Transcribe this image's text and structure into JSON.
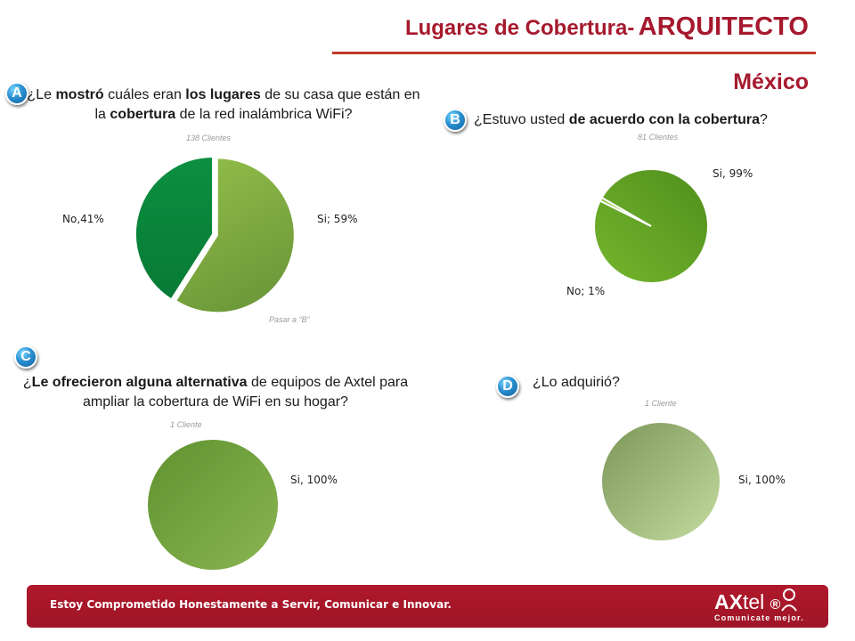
{
  "header": {
    "title_lead": "Lugares de Cobertura-",
    "title_accent": "ARQUITECTO",
    "region": "México"
  },
  "colors": {
    "brand_red": "#a6192e",
    "badge_blue": "#1f7fc4",
    "pie_dark_green": "#0b8a3e",
    "pie_light_green": "#8ab848",
    "pie_c_green": "#6ea13a",
    "pie_d_green": "#a6c48a"
  },
  "sections": {
    "a": {
      "badge": "A",
      "question_parts": [
        "¿Le ",
        "mostró",
        " cuáles eran ",
        "los lugares",
        " de su casa que están en la ",
        "cobertura",
        " de la red inalámbrica WiFi?"
      ],
      "base": "138 Clientes",
      "note": "Pasar a “B”",
      "labels": {
        "si": "Si; 59%",
        "no": "No,41%"
      }
    },
    "b": {
      "badge": "B",
      "question_parts": [
        "¿Estuvo usted ",
        "de acuerdo con la cobertura",
        "?"
      ],
      "base": "81 Clientes",
      "labels": {
        "si": "Si, 99%",
        "no": "No; 1%"
      }
    },
    "c": {
      "badge": "C",
      "question_parts": [
        "¿",
        "Le ofrecieron alguna alternativa",
        " de equipos de Axtel para ampliar la cobertura de WiFi en su hogar?"
      ],
      "base": "1 Cliente",
      "labels": {
        "si": "Si, 100%"
      }
    },
    "d": {
      "badge": "D",
      "question": "¿Lo adquirió?",
      "base": "1 Cliente",
      "labels": {
        "si": "Si, 100%"
      }
    }
  },
  "chart_data": [
    {
      "type": "pie",
      "title": "",
      "categories": [
        "Si",
        "No"
      ],
      "values": [
        59,
        41
      ]
    },
    {
      "type": "pie",
      "title": "",
      "categories": [
        "Si",
        "No"
      ],
      "values": [
        99,
        1
      ]
    },
    {
      "type": "pie",
      "title": "",
      "categories": [
        "Si"
      ],
      "values": [
        100
      ]
    },
    {
      "type": "pie",
      "title": "",
      "categories": [
        "Si"
      ],
      "values": [
        100
      ]
    }
  ],
  "footer": {
    "slogan": "Estoy Comprometido Honestamente a Servir, Comunicar e Innovar.",
    "logo_bold": "AX",
    "logo_thin": "tel",
    "logo_mark": "®",
    "tagline": "Comunicate mejor."
  }
}
